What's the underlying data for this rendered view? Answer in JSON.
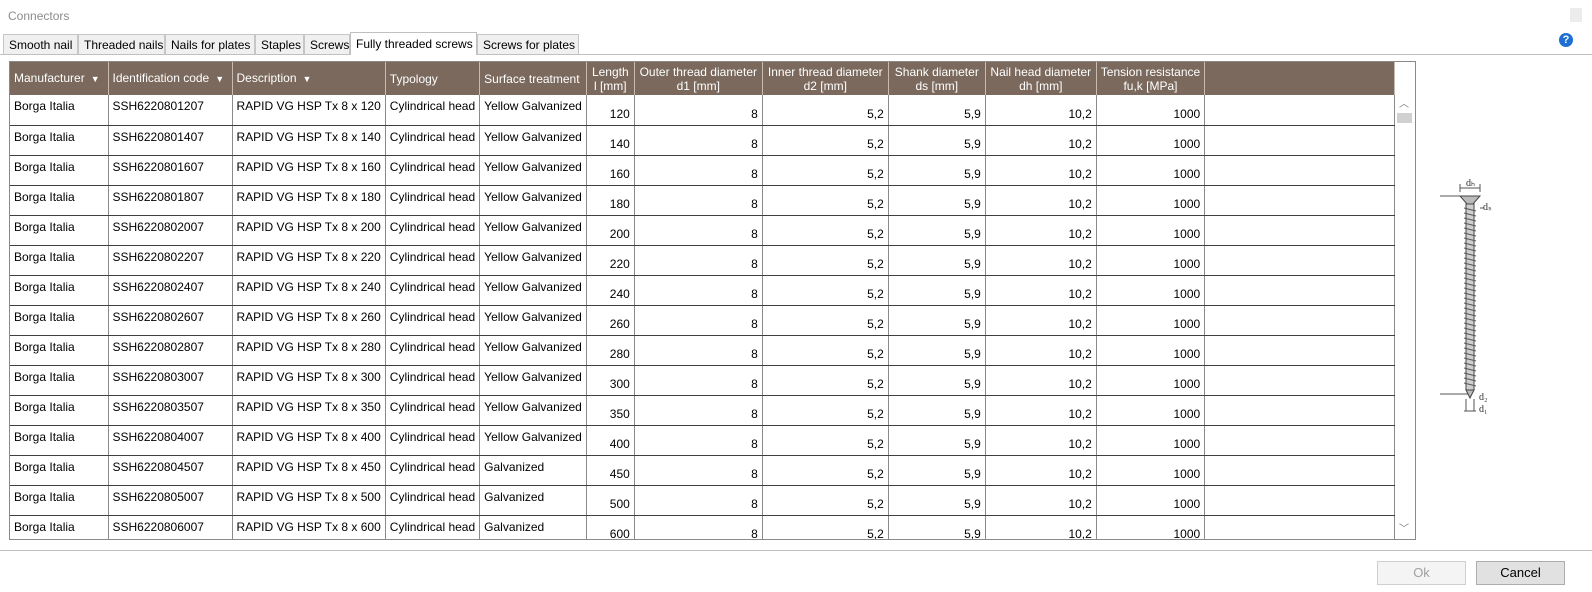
{
  "window": {
    "title": "Connectors"
  },
  "tabs": [
    {
      "label": "Smooth nail",
      "active": false
    },
    {
      "label": "Threaded nails",
      "active": false
    },
    {
      "label": "Nails for plates",
      "active": false
    },
    {
      "label": "Staples",
      "active": false
    },
    {
      "label": "Screws",
      "active": false
    },
    {
      "label": "Fully threaded screws",
      "active": true
    },
    {
      "label": "Screws for plates",
      "active": false
    }
  ],
  "help": {
    "glyph": "?"
  },
  "table": {
    "columns": [
      {
        "line1": "Manufacturer",
        "line2": "",
        "filter": true
      },
      {
        "line1": "Identification code",
        "line2": "",
        "filter": true
      },
      {
        "line1": "Description",
        "line2": "",
        "filter": true
      },
      {
        "line1": "Typology",
        "line2": "",
        "filter": false
      },
      {
        "line1": "Surface treatment",
        "line2": "",
        "filter": false
      },
      {
        "line1": "Length",
        "line2": "l [mm]",
        "filter": false
      },
      {
        "line1": "Outer thread diameter",
        "line2": "d1 [mm]",
        "filter": false
      },
      {
        "line1": "Inner thread diameter",
        "line2": "d2 [mm]",
        "filter": false
      },
      {
        "line1": "Shank diameter",
        "line2": "ds [mm]",
        "filter": false
      },
      {
        "line1": "Nail head diameter",
        "line2": "dh [mm]",
        "filter": false
      },
      {
        "line1": "Tension resistance",
        "line2": "fu,k [MPa]",
        "filter": false
      }
    ],
    "rows": [
      [
        "Borga Italia",
        "SSH6220801207",
        "RAPID VG HSP Tx 8 x 120",
        "Cylindrical head",
        "Yellow Galvanized",
        "120",
        "8",
        "5,2",
        "5,9",
        "10,2",
        "1000"
      ],
      [
        "Borga Italia",
        "SSH6220801407",
        "RAPID VG HSP Tx 8 x 140",
        "Cylindrical head",
        "Yellow Galvanized",
        "140",
        "8",
        "5,2",
        "5,9",
        "10,2",
        "1000"
      ],
      [
        "Borga Italia",
        "SSH6220801607",
        "RAPID VG HSP Tx 8 x 160",
        "Cylindrical head",
        "Yellow Galvanized",
        "160",
        "8",
        "5,2",
        "5,9",
        "10,2",
        "1000"
      ],
      [
        "Borga Italia",
        "SSH6220801807",
        "RAPID VG HSP Tx 8 x 180",
        "Cylindrical head",
        "Yellow Galvanized",
        "180",
        "8",
        "5,2",
        "5,9",
        "10,2",
        "1000"
      ],
      [
        "Borga Italia",
        "SSH6220802007",
        "RAPID VG HSP Tx 8 x 200",
        "Cylindrical head",
        "Yellow Galvanized",
        "200",
        "8",
        "5,2",
        "5,9",
        "10,2",
        "1000"
      ],
      [
        "Borga Italia",
        "SSH6220802207",
        "RAPID VG HSP Tx 8 x 220",
        "Cylindrical head",
        "Yellow Galvanized",
        "220",
        "8",
        "5,2",
        "5,9",
        "10,2",
        "1000"
      ],
      [
        "Borga Italia",
        "SSH6220802407",
        "RAPID VG HSP Tx 8 x 240",
        "Cylindrical head",
        "Yellow Galvanized",
        "240",
        "8",
        "5,2",
        "5,9",
        "10,2",
        "1000"
      ],
      [
        "Borga Italia",
        "SSH6220802607",
        "RAPID VG HSP Tx 8 x 260",
        "Cylindrical head",
        "Yellow Galvanized",
        "260",
        "8",
        "5,2",
        "5,9",
        "10,2",
        "1000"
      ],
      [
        "Borga Italia",
        "SSH6220802807",
        "RAPID VG HSP Tx 8 x 280",
        "Cylindrical head",
        "Yellow Galvanized",
        "280",
        "8",
        "5,2",
        "5,9",
        "10,2",
        "1000"
      ],
      [
        "Borga Italia",
        "SSH6220803007",
        "RAPID VG HSP Tx 8 x 300",
        "Cylindrical head",
        "Yellow Galvanized",
        "300",
        "8",
        "5,2",
        "5,9",
        "10,2",
        "1000"
      ],
      [
        "Borga Italia",
        "SSH6220803507",
        "RAPID VG HSP Tx 8 x 350",
        "Cylindrical head",
        "Yellow Galvanized",
        "350",
        "8",
        "5,2",
        "5,9",
        "10,2",
        "1000"
      ],
      [
        "Borga Italia",
        "SSH6220804007",
        "RAPID VG HSP Tx 8 x 400",
        "Cylindrical head",
        "Yellow Galvanized",
        "400",
        "8",
        "5,2",
        "5,9",
        "10,2",
        "1000"
      ],
      [
        "Borga Italia",
        "SSH6220804507",
        "RAPID VG HSP Tx 8 x 450",
        "Cylindrical head",
        "Galvanized",
        "450",
        "8",
        "5,2",
        "5,9",
        "10,2",
        "1000"
      ],
      [
        "Borga Italia",
        "SSH6220805007",
        "RAPID VG HSP Tx 8 x 500",
        "Cylindrical head",
        "Galvanized",
        "500",
        "8",
        "5,2",
        "5,9",
        "10,2",
        "1000"
      ],
      [
        "Borga Italia",
        "SSH6220806007",
        "RAPID VG HSP Tx 8 x 600",
        "Cylindrical head",
        "Galvanized",
        "600",
        "8",
        "5,2",
        "5,9",
        "10,2",
        "1000"
      ]
    ]
  },
  "diagram": {
    "label_head": "dₕ",
    "label_shank": "dₛ",
    "label_length": "l",
    "label_inner": "d₂",
    "label_outer": "d₁"
  },
  "buttons": {
    "ok": "Ok",
    "cancel": "Cancel"
  },
  "colors": {
    "header_bg": "#7a695c",
    "help_icon": "#1e6fd2"
  }
}
